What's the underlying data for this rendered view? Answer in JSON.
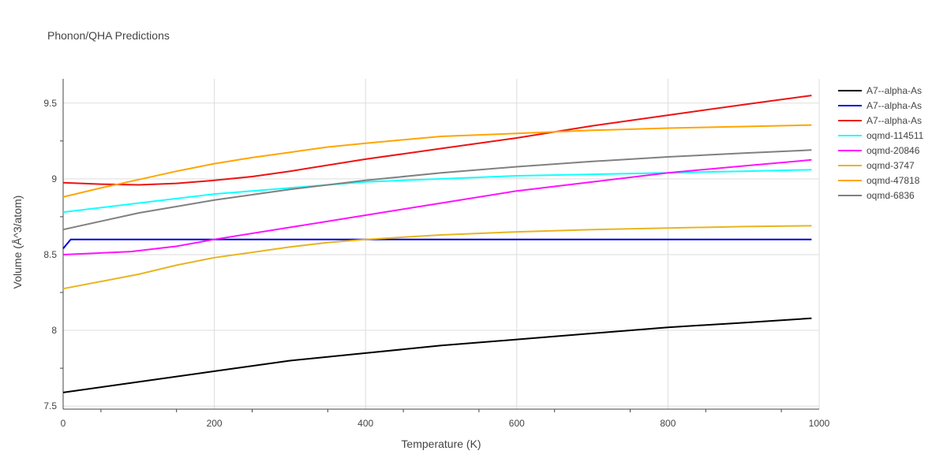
{
  "chart_data": {
    "type": "line",
    "title": "Phonon/QHA Predictions",
    "xlabel": "Temperature (K)",
    "ylabel": "Volume (Å^3/atom)",
    "xlim": [
      0,
      1000
    ],
    "ylim": [
      7.48,
      9.66
    ],
    "xticks": [
      0,
      200,
      400,
      600,
      800,
      1000
    ],
    "yticks": [
      7.5,
      8,
      8.5,
      9,
      9.5
    ],
    "xtick_labels": [
      "0",
      "200",
      "400",
      "600",
      "800",
      "1000"
    ],
    "ytick_labels": [
      "7.5",
      "8",
      "8.5",
      "9",
      "9.5"
    ],
    "grid": true,
    "legend_position": "top-right",
    "series": [
      {
        "name": "A7--alpha-As",
        "color": "#000000",
        "x": [
          0,
          100,
          200,
          300,
          400,
          500,
          600,
          700,
          800,
          900,
          990
        ],
        "y": [
          7.59,
          7.66,
          7.73,
          7.8,
          7.85,
          7.9,
          7.94,
          7.98,
          8.02,
          8.05,
          8.08
        ]
      },
      {
        "name": "A7--alpha-As",
        "color": "#0000dd",
        "x": [
          0,
          10,
          100,
          200,
          400,
          600,
          800,
          990
        ],
        "y": [
          8.54,
          8.6,
          8.6,
          8.6,
          8.6,
          8.6,
          8.6,
          8.6
        ]
      },
      {
        "name": "A7--alpha-As",
        "color": "#ee1111",
        "x": [
          0,
          50,
          100,
          150,
          200,
          250,
          300,
          400,
          500,
          600,
          700,
          800,
          900,
          990
        ],
        "y": [
          8.975,
          8.965,
          8.96,
          8.97,
          8.99,
          9.015,
          9.05,
          9.13,
          9.2,
          9.27,
          9.35,
          9.42,
          9.49,
          9.55
        ]
      },
      {
        "name": "oqmd-114511",
        "color": "#11ffff",
        "x": [
          0,
          100,
          200,
          300,
          400,
          500,
          600,
          700,
          800,
          900,
          990
        ],
        "y": [
          8.78,
          8.84,
          8.9,
          8.94,
          8.98,
          9.0,
          9.02,
          9.03,
          9.04,
          9.05,
          9.06
        ]
      },
      {
        "name": "oqmd-20846",
        "color": "#ff11ff",
        "x": [
          0,
          90,
          150,
          200,
          300,
          400,
          500,
          600,
          700,
          800,
          900,
          990
        ],
        "y": [
          8.5,
          8.52,
          8.555,
          8.6,
          8.68,
          8.76,
          8.84,
          8.92,
          8.98,
          9.04,
          9.085,
          9.125
        ]
      },
      {
        "name": "oqmd-3747",
        "color": "#e8b420",
        "x": [
          0,
          100,
          150,
          200,
          250,
          300,
          350,
          400,
          500,
          600,
          700,
          800,
          900,
          990
        ],
        "y": [
          8.275,
          8.37,
          8.43,
          8.48,
          8.515,
          8.55,
          8.58,
          8.6,
          8.63,
          8.65,
          8.665,
          8.675,
          8.685,
          8.69
        ]
      },
      {
        "name": "oqmd-47818",
        "color": "#ffa500",
        "x": [
          0,
          50,
          100,
          150,
          200,
          250,
          300,
          350,
          400,
          500,
          600,
          700,
          800,
          900,
          990
        ],
        "y": [
          8.88,
          8.94,
          8.995,
          9.05,
          9.1,
          9.14,
          9.175,
          9.21,
          9.235,
          9.28,
          9.3,
          9.32,
          9.335,
          9.345,
          9.355
        ]
      },
      {
        "name": "oqmd-6836",
        "color": "#808080",
        "x": [
          0,
          100,
          200,
          300,
          400,
          500,
          600,
          700,
          800,
          900,
          990
        ],
        "y": [
          8.665,
          8.775,
          8.86,
          8.93,
          8.99,
          9.04,
          9.08,
          9.115,
          9.145,
          9.17,
          9.19
        ]
      }
    ]
  }
}
